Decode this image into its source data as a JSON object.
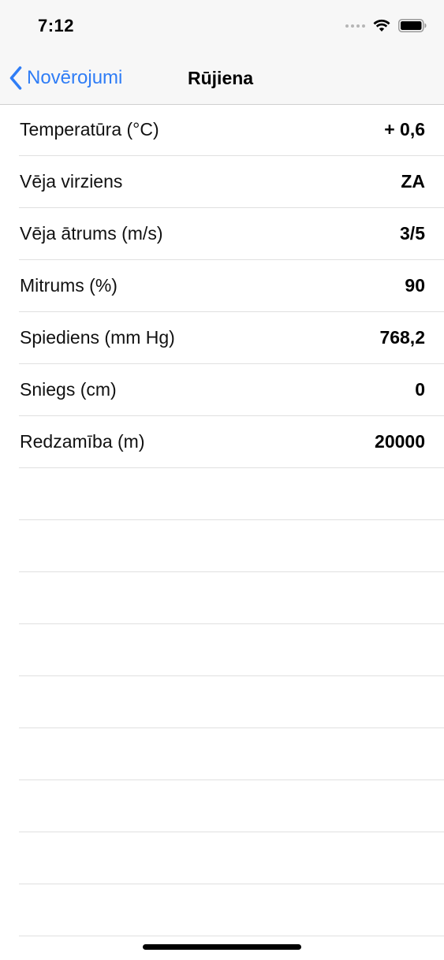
{
  "status_bar": {
    "time": "7:12",
    "icons": [
      "signal-dots-icon",
      "wifi-icon",
      "battery-icon"
    ]
  },
  "nav": {
    "back_label": "Novērojumi",
    "title": "Rūjiena",
    "accent_color": "#2f7df6"
  },
  "observations": [
    {
      "label": "Temperatūra (°C)",
      "value": "+ 0,6"
    },
    {
      "label": "Vēja virziens",
      "value": "ZA"
    },
    {
      "label": "Vēja ātrums (m/s)",
      "value": "3/5"
    },
    {
      "label": "Mitrums (%)",
      "value": "90"
    },
    {
      "label": "Spiediens (mm Hg)",
      "value": "768,2"
    },
    {
      "label": "Sniegs (cm)",
      "value": "0"
    },
    {
      "label": "Redzamība (m)",
      "value": "20000"
    }
  ]
}
